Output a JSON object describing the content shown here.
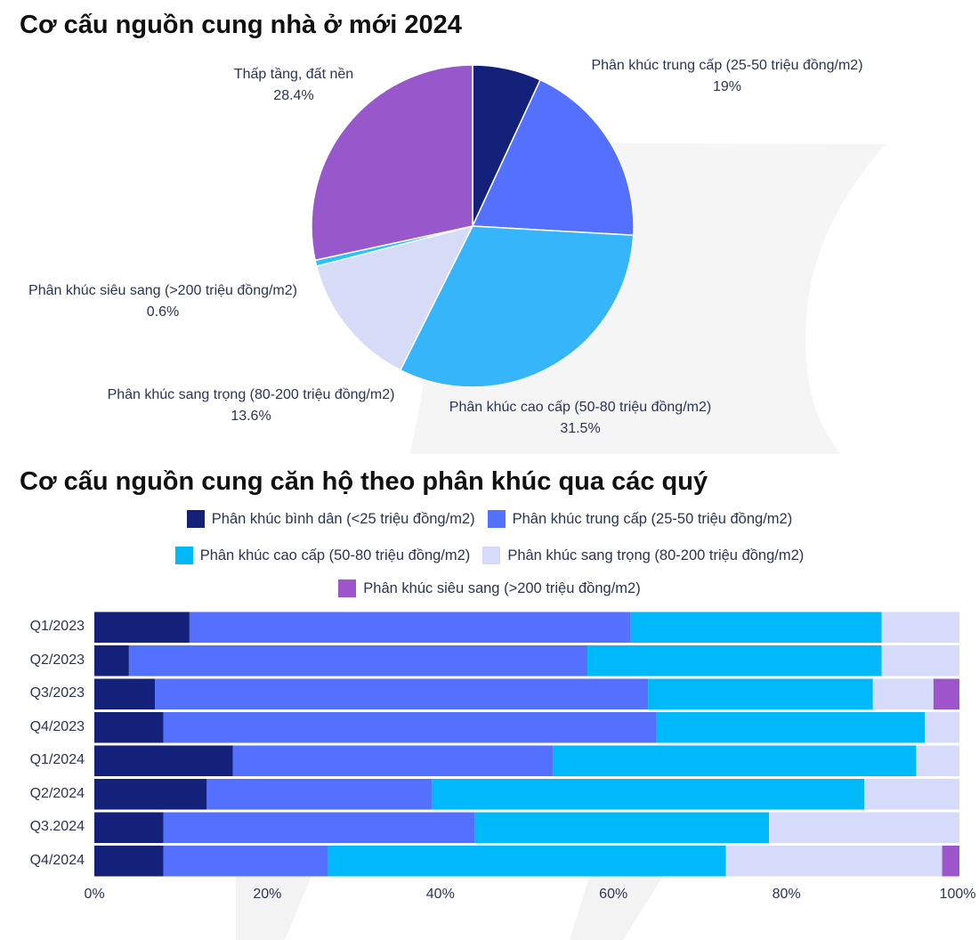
{
  "chart_data": [
    {
      "type": "pie",
      "title": "Cơ cấu nguồn cung nhà ở mới 2024",
      "slices": [
        {
          "label": "Phân khúc bình dân (<25 triệu đồng/m2)",
          "value": 6.9,
          "color": "#13217a",
          "show_label": false
        },
        {
          "label": "Phân khúc trung cấp (25-50 triệu đồng/m2)",
          "value": 19,
          "display": "19%",
          "color": "#5370ff",
          "show_label": true
        },
        {
          "label": "Phân khúc cao cấp (50-80 triệu đồng/m2)",
          "value": 31.5,
          "display": "31.5%",
          "color": "#36b5fb",
          "show_label": true
        },
        {
          "label": "Phân khúc sang trọng (80-200 triệu đồng/m2)",
          "value": 13.6,
          "display": "13.6%",
          "color": "#d6dbf8",
          "show_label": true
        },
        {
          "label": "Phân khúc siêu sang (>200 triệu đồng/m2)",
          "value": 0.6,
          "display": "0.6%",
          "color": "#2ac4f4",
          "show_label": true
        },
        {
          "label": "Thấp tầng, đất nền",
          "value": 28.4,
          "display": "28.4%",
          "color": "#9858cc",
          "show_label": true
        }
      ]
    },
    {
      "type": "bar",
      "orientation": "horizontal",
      "stacked": "percent",
      "title": "Cơ cấu nguồn cung căn hộ theo phân khúc qua các quý",
      "categories": [
        "Q1/2023",
        "Q2/2023",
        "Q3/2023",
        "Q4/2023",
        "Q1/2024",
        "Q2/2024",
        "Q3.2024",
        "Q4/2024"
      ],
      "series": [
        {
          "name": "Phân khúc bình dân (<25 triệu đồng/m2)",
          "color": "#13217a",
          "values": [
            11,
            4,
            7,
            8,
            16,
            13,
            8,
            8
          ]
        },
        {
          "name": "Phân khúc trung cấp (25-50 triệu đồng/m2)",
          "color": "#5370ff",
          "values": [
            51,
            53,
            57,
            57,
            37,
            26,
            36,
            19
          ]
        },
        {
          "name": "Phân khúc cao cấp (50-80 triệu đồng/m2)",
          "color": "#00b9fb",
          "values": [
            29,
            34,
            26,
            31,
            42,
            50,
            34,
            46
          ]
        },
        {
          "name": "Phân khúc sang trọng (80-200 triệu đồng/m2)",
          "color": "#d6dbfb",
          "values": [
            9,
            9,
            7,
            4,
            5,
            11,
            22,
            25
          ]
        },
        {
          "name": "Phân khúc siêu sang (>200 triệu đồng/m2)",
          "color": "#9e55cc",
          "values": [
            0,
            0,
            3,
            0,
            0,
            0,
            0,
            2
          ]
        }
      ],
      "xlim": [
        0,
        100
      ],
      "xticks": [
        "0%",
        "20%",
        "40%",
        "60%",
        "80%",
        "100%"
      ],
      "legend": "top-center"
    }
  ]
}
